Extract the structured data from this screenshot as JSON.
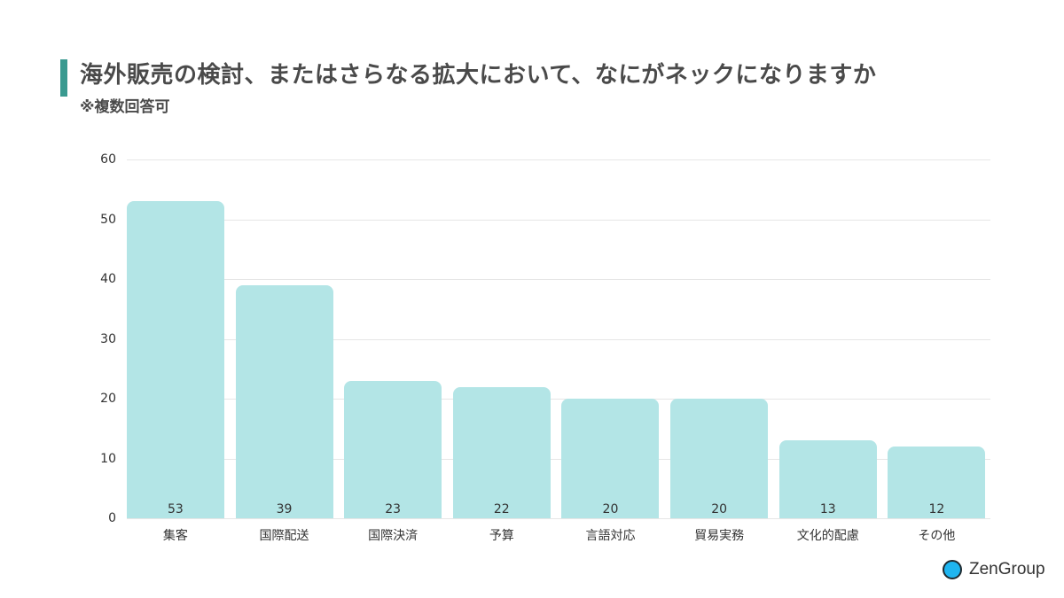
{
  "header": {
    "title": "海外販売の検討、またはさらなる拡大において、なにがネックになりますか",
    "subtitle": "※複数回答可",
    "accent_color": "#3a9a90"
  },
  "chart_data": {
    "type": "bar",
    "title": "海外販売の検討、またはさらなる拡大において、なにがネックになりますか",
    "subtitle": "※複数回答可",
    "categories": [
      "集客",
      "国際配送",
      "国際決済",
      "予算",
      "言語対応",
      "貿易実務",
      "文化的配慮",
      "その他"
    ],
    "values": [
      53,
      39,
      23,
      22,
      20,
      20,
      13,
      12
    ],
    "value_labels": [
      "53",
      "39",
      "23",
      "22",
      "20",
      "20",
      "13",
      "12"
    ],
    "xlabel": "",
    "ylabel": "",
    "ylim": [
      0,
      60
    ],
    "yticks": [
      "0",
      "10",
      "20",
      "30",
      "40",
      "50",
      "60"
    ],
    "grid": true,
    "legend": "none",
    "bar_color": "#b3e5e6"
  },
  "branding": {
    "logo_text": "ZenGroup",
    "logo_icon": "circle-logo-icon"
  }
}
